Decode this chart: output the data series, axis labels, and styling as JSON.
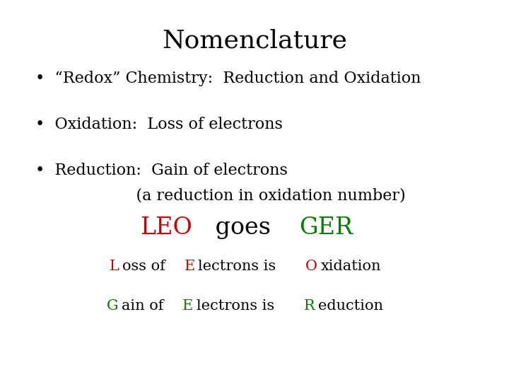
{
  "title": "Nomenclature",
  "title_fontsize": 26,
  "body_fontsize": 16,
  "leo_ger_fontsize": 24,
  "colored_fontsize": 15,
  "title_font": "DejaVu Serif",
  "background_color": "#ffffff",
  "bullet1": "•  “Redox” Chemistry:  Reduction and Oxidation",
  "bullet2": "•  Oxidation:  Loss of electrons",
  "bullet3_line1": "•  Reduction:  Gain of electrons",
  "bullet3_line2": "                    (a reduction in oxidation number)",
  "red_color": "#cc0000",
  "green_color": "#008000",
  "black_color": "#000000",
  "leo_pieces": [
    [
      "LEO",
      "#cc0000"
    ],
    [
      " goes ",
      "#000000"
    ],
    [
      "GER",
      "#008000"
    ]
  ],
  "line2_pieces": [
    [
      "L",
      "#cc0000"
    ],
    [
      "oss of ",
      "#000000"
    ],
    [
      "E",
      "#cc0000"
    ],
    [
      "lectrons is ",
      "#000000"
    ],
    [
      "O",
      "#cc0000"
    ],
    [
      "xidation",
      "#000000"
    ]
  ],
  "line3_pieces": [
    [
      "G",
      "#008000"
    ],
    [
      "ain of ",
      "#000000"
    ],
    [
      "E",
      "#008000"
    ],
    [
      "lectrons is ",
      "#000000"
    ],
    [
      "R",
      "#008000"
    ],
    [
      "eduction",
      "#000000"
    ]
  ]
}
